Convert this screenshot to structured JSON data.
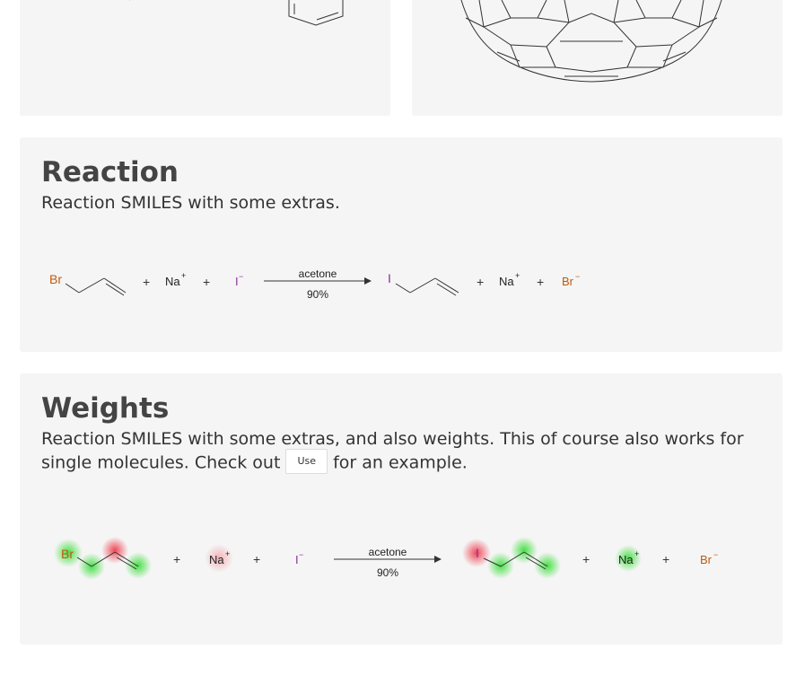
{
  "reaction": {
    "title": "Reaction",
    "description": "Reaction SMILES with some extras.",
    "scheme": {
      "reactant_atom": "Br",
      "plus": "+",
      "sodium": "Na",
      "charge_plus": "+",
      "iodide": "I",
      "charge_minus": "−",
      "reagent": "acetone",
      "yield": "90%",
      "product_atom": "I",
      "bromide": "Br"
    }
  },
  "weights": {
    "title": "Weights",
    "description_part1": "Reaction SMILES with some extras, and also weights. This of course also works for single molecules. Check out",
    "use_button_label": "Use",
    "description_part2": "for an example.",
    "scheme": {
      "reactant_atom": "Br",
      "plus": "+",
      "sodium": "Na",
      "charge_plus": "+",
      "iodide": "I",
      "charge_minus": "−",
      "reagent": "acetone",
      "yield": "90%",
      "product_atom": "I",
      "bromide": "Br"
    }
  },
  "colors": {
    "bromine": "#c25a0c",
    "iodine": "#8b2f9e",
    "positive_weight": "#33dd33",
    "negative_weight": "#ee3344"
  }
}
